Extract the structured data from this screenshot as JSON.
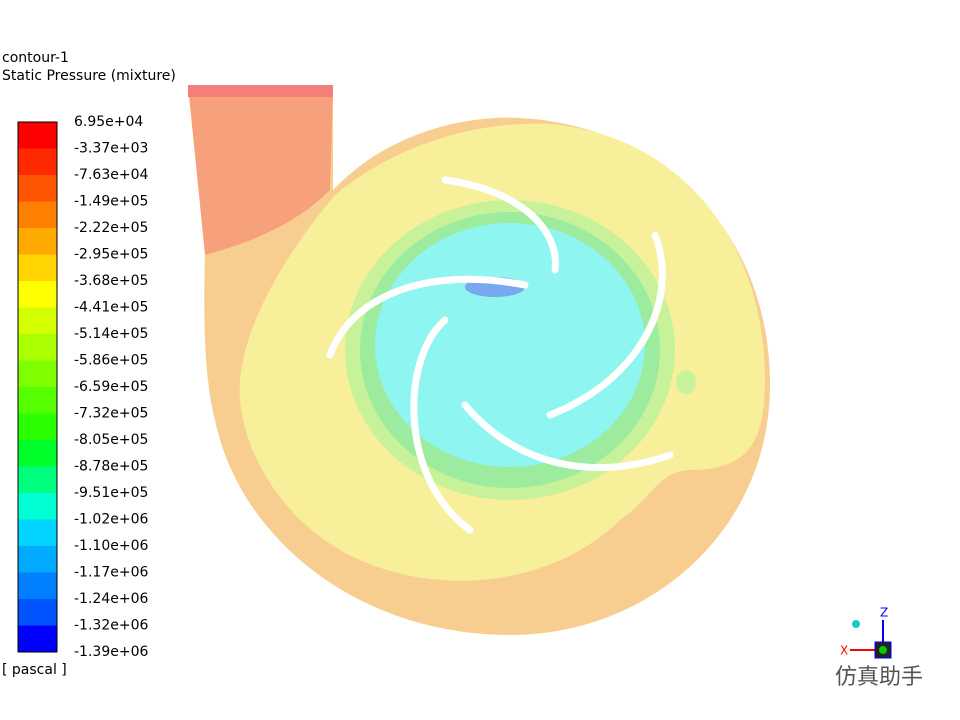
{
  "header": {
    "title": "contour-1",
    "subtitle": "Static Pressure (mixture)"
  },
  "legend": {
    "labels": [
      "6.95e+04",
      "-3.37e+03",
      "-7.63e+04",
      "-1.49e+05",
      "-2.22e+05",
      "-2.95e+05",
      "-3.68e+05",
      "-4.41e+05",
      "-5.14e+05",
      "-5.86e+05",
      "-6.59e+05",
      "-7.32e+05",
      "-8.05e+05",
      "-8.78e+05",
      "-9.51e+05",
      "-1.02e+06",
      "-1.10e+06",
      "-1.17e+06",
      "-1.24e+06",
      "-1.32e+06",
      "-1.39e+06"
    ],
    "colors": [
      "#ff0000",
      "#ff2a00",
      "#ff5500",
      "#ff7f00",
      "#ffaa00",
      "#ffd400",
      "#ffff00",
      "#d4ff00",
      "#aaff00",
      "#7fff00",
      "#55ff00",
      "#2aff00",
      "#00ff2a",
      "#00ff7f",
      "#00ffd4",
      "#00d4ff",
      "#00aaff",
      "#007fff",
      "#0055ff",
      "#0000ff"
    ],
    "units": "[ pascal ]"
  },
  "axes": {
    "z": "Z",
    "x": "X"
  },
  "watermark": "仿真助手"
}
